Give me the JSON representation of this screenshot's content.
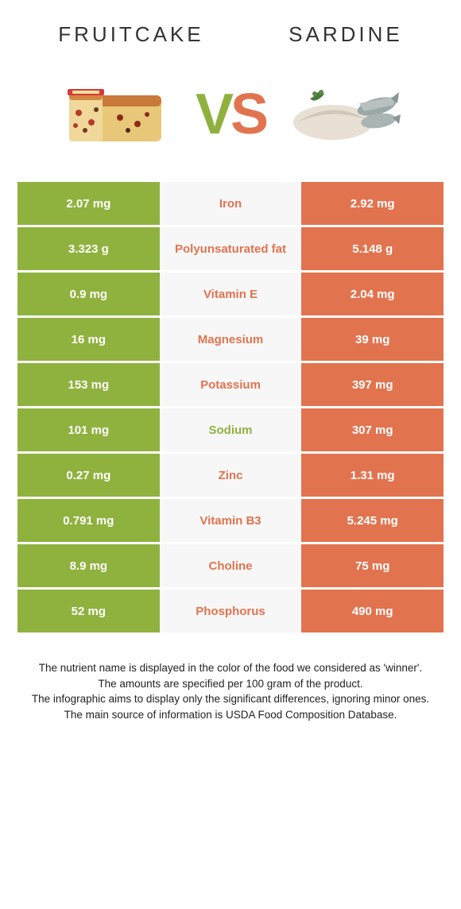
{
  "header": {
    "left_title": "Fruitcake",
    "right_title": "Sardine"
  },
  "vs": {
    "v": "V",
    "s": "S"
  },
  "colors": {
    "left": "#8fb23e",
    "right": "#e2734f",
    "mid_bg": "#f7f7f7",
    "left_win_text": "#8fb23e",
    "right_win_text": "#e2734f"
  },
  "rows": [
    {
      "left": "2.07 mg",
      "label": "Iron",
      "right": "2.92 mg",
      "winner": "right"
    },
    {
      "left": "3.323 g",
      "label": "Polyunsaturated fat",
      "right": "5.148 g",
      "winner": "right"
    },
    {
      "left": "0.9 mg",
      "label": "Vitamin E",
      "right": "2.04 mg",
      "winner": "right"
    },
    {
      "left": "16 mg",
      "label": "Magnesium",
      "right": "39 mg",
      "winner": "right"
    },
    {
      "left": "153 mg",
      "label": "Potassium",
      "right": "397 mg",
      "winner": "right"
    },
    {
      "left": "101 mg",
      "label": "Sodium",
      "right": "307 mg",
      "winner": "left"
    },
    {
      "left": "0.27 mg",
      "label": "Zinc",
      "right": "1.31 mg",
      "winner": "right"
    },
    {
      "left": "0.791 mg",
      "label": "Vitamin B3",
      "right": "5.245 mg",
      "winner": "right"
    },
    {
      "left": "8.9 mg",
      "label": "Choline",
      "right": "75 mg",
      "winner": "right"
    },
    {
      "left": "52 mg",
      "label": "Phosphorus",
      "right": "490 mg",
      "winner": "right"
    }
  ],
  "footnote": {
    "l1": "The nutrient name is displayed in the color of the food we considered as 'winner'.",
    "l2": "The amounts are specified per 100 gram of the product.",
    "l3": "The infographic aims to display only the significant differences, ignoring minor ones.",
    "l4": "The main source of information is USDA Food Composition Database."
  }
}
